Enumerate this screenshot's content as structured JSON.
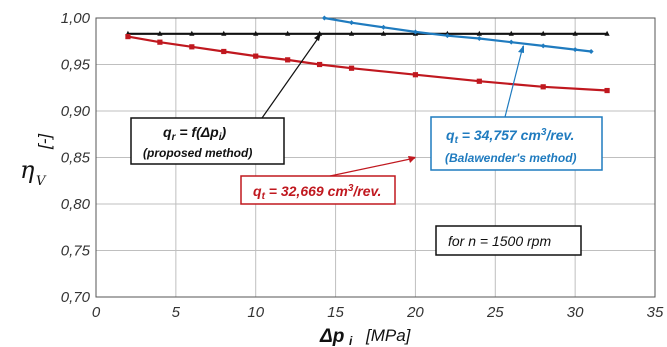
{
  "chart_data": {
    "type": "line",
    "x_ticks": [
      "0",
      "5",
      "10",
      "15",
      "20",
      "25",
      "30",
      "35"
    ],
    "y_ticks": [
      "0,70",
      "0,75",
      "0,80",
      "0,85",
      "0,90",
      "0,95",
      "1,00"
    ],
    "xlim": [
      0,
      35
    ],
    "ylim": [
      0.7,
      1.0
    ],
    "grid": true,
    "xlabel": {
      "main": "Δp",
      "sub": "i",
      "unit": "[MPa]"
    },
    "ylabel": {
      "main": "η",
      "sub": "V",
      "unit": "[-]"
    },
    "colors": {
      "black": "#111111",
      "red": "#c0181f",
      "blue": "#1f7bbf"
    },
    "series": [
      {
        "color": "black",
        "marker": "triangle",
        "x": [
          2,
          4,
          6,
          8,
          10,
          12,
          14,
          16,
          18,
          20,
          22,
          24,
          26,
          28,
          30,
          32
        ],
        "y": [
          0.983,
          0.983,
          0.983,
          0.983,
          0.983,
          0.983,
          0.983,
          0.983,
          0.983,
          0.983,
          0.983,
          0.983,
          0.983,
          0.983,
          0.983,
          0.983
        ]
      },
      {
        "color": "red",
        "marker": "square",
        "x": [
          2,
          4,
          6,
          8,
          10,
          12,
          14,
          16,
          20,
          24,
          28,
          32
        ],
        "y": [
          0.98,
          0.974,
          0.969,
          0.964,
          0.959,
          0.955,
          0.95,
          0.946,
          0.939,
          0.932,
          0.926,
          0.922
        ]
      },
      {
        "color": "blue",
        "marker": "diamond",
        "x": [
          14.3,
          16,
          18,
          20,
          22,
          24,
          26,
          28,
          30,
          31
        ],
        "y": [
          1.0,
          0.995,
          0.99,
          0.985,
          0.981,
          0.978,
          0.974,
          0.97,
          0.966,
          0.964
        ]
      }
    ],
    "annotations": [
      {
        "color": "black",
        "line1_pre": "q",
        "line1_sub": "r",
        "line1_mid": " = f(Δp",
        "line1_sub2": "i",
        "line1_post": ")",
        "line2": "(proposed method)"
      },
      {
        "color": "red",
        "line1_pre": "q",
        "line1_sub": "t",
        "line1_mid": " = 32,669 cm",
        "line1_sup": "3",
        "line1_post": "/rev."
      },
      {
        "color": "blue",
        "line1_pre": "q",
        "line1_sub": "t",
        "line1_mid": " = 34,757 cm",
        "line1_sup": "3",
        "line1_post": "/rev.",
        "line2": "(Balawender's method)"
      },
      {
        "color": "black",
        "line1_pre": "for n = 1500 rpm"
      }
    ]
  }
}
